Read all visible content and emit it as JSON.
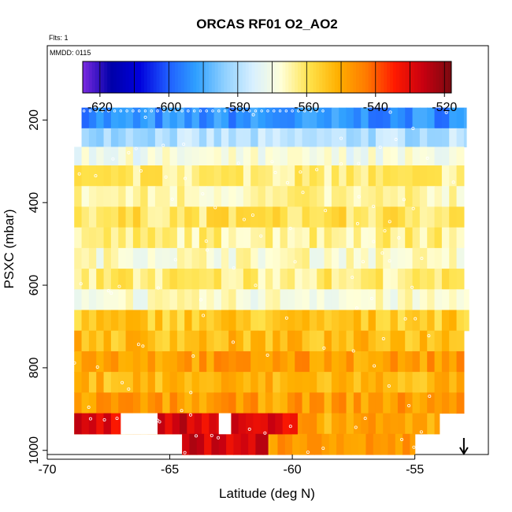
{
  "chart_data": {
    "type": "heatmap",
    "title": "ORCAS RF01 O2_AO2",
    "flights_label": "Flts: 1",
    "date_label": "MMDD: 0115",
    "xlabel": "Latitude (deg N)",
    "ylabel": "PSXC (mbar)",
    "xlim": [
      -70,
      -52
    ],
    "ylim": [
      1010,
      20
    ],
    "y_reversed": true,
    "grid": false,
    "x_ticks": [
      -70,
      -65,
      -60,
      -55
    ],
    "y_ticks": [
      200,
      400,
      600,
      800,
      1000
    ],
    "colorbar": {
      "range": [
        -625,
        -518
      ],
      "ticks": [
        -620,
        -600,
        -580,
        -560,
        -540,
        -520
      ],
      "colors": [
        "#7b2be0",
        "#0000a8",
        "#0000dc",
        "#1f5cff",
        "#2fa0ff",
        "#8fd0ff",
        "#d8f0ff",
        "#ffffd8",
        "#ffe24a",
        "#ffb000",
        "#ff7a00",
        "#ff1a00",
        "#c80010",
        "#7a0a10"
      ],
      "placement": "top-inside"
    },
    "latitude_range": [
      -68.9,
      -52.8
    ],
    "bands": [
      {
        "p_top": 170,
        "p_bot": 220,
        "lat_min": -68.6,
        "lat_max": -52.9,
        "value": -594
      },
      {
        "p_top": 220,
        "p_bot": 265,
        "lat_min": -68.6,
        "lat_max": -52.9,
        "value": -580
      },
      {
        "p_top": 265,
        "p_bot": 310,
        "lat_min": -68.9,
        "lat_max": -53.0,
        "value": -570
      },
      {
        "p_top": 310,
        "p_bot": 360,
        "lat_min": -68.9,
        "lat_max": -53.0,
        "value": -562
      },
      {
        "p_top": 360,
        "p_bot": 410,
        "lat_min": -68.9,
        "lat_max": -53.0,
        "value": -565
      },
      {
        "p_top": 410,
        "p_bot": 460,
        "lat_min": -68.9,
        "lat_max": -53.0,
        "value": -560
      },
      {
        "p_top": 460,
        "p_bot": 510,
        "lat_min": -68.9,
        "lat_max": -53.0,
        "value": -563
      },
      {
        "p_top": 510,
        "p_bot": 560,
        "lat_min": -68.9,
        "lat_max": -53.0,
        "value": -567
      },
      {
        "p_top": 560,
        "p_bot": 610,
        "lat_min": -68.9,
        "lat_max": -53.0,
        "value": -562
      },
      {
        "p_top": 610,
        "p_bot": 660,
        "lat_min": -68.9,
        "lat_max": -52.8,
        "value": -568
      },
      {
        "p_top": 660,
        "p_bot": 710,
        "lat_min": -68.9,
        "lat_max": -52.8,
        "value": -555
      },
      {
        "p_top": 710,
        "p_bot": 760,
        "lat_min": -68.9,
        "lat_max": -53.0,
        "value": -553
      },
      {
        "p_top": 760,
        "p_bot": 810,
        "lat_min": -68.9,
        "lat_max": -53.0,
        "value": -548
      },
      {
        "p_top": 810,
        "p_bot": 860,
        "lat_min": -68.9,
        "lat_max": -53.0,
        "value": -552
      },
      {
        "p_top": 860,
        "p_bot": 910,
        "lat_min": -68.9,
        "lat_max": -53.0,
        "value": -548
      },
      {
        "p_top": 910,
        "p_bot": 960,
        "lat_min": -68.9,
        "lat_max": -54.0,
        "value": -550
      },
      {
        "p_top": 960,
        "p_bot": 1010,
        "lat_min": -64.5,
        "lat_max": -55.0,
        "value": -548
      }
    ],
    "hot_patches": [
      {
        "p_top": 910,
        "p_bot": 960,
        "lat_min": -68.9,
        "lat_max": -67.0,
        "value": -530
      },
      {
        "p_top": 910,
        "p_bot": 960,
        "lat_min": -65.5,
        "lat_max": -63.0,
        "value": -528
      },
      {
        "p_top": 910,
        "p_bot": 960,
        "lat_min": -62.5,
        "lat_max": -59.8,
        "value": -530
      },
      {
        "p_top": 960,
        "p_bot": 1010,
        "lat_min": -64.5,
        "lat_max": -61.0,
        "value": -528
      }
    ],
    "gaps": [
      {
        "p_top": 910,
        "p_bot": 960,
        "lat_min": -67.0,
        "lat_max": -65.5
      },
      {
        "p_top": 910,
        "p_bot": 960,
        "lat_min": -63.0,
        "lat_max": -62.5
      }
    ],
    "marker": {
      "lat": -53.0,
      "symbol": "arrow-down"
    }
  }
}
